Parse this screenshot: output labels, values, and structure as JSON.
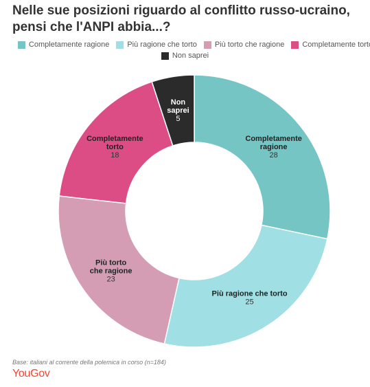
{
  "chart_data": {
    "type": "pie",
    "title": "Nelle sue posizioni riguardo al conflitto russo-ucraino, pensi che l'ANPI abbia...?",
    "categories": [
      "Completamente ragione",
      "Più ragione che torto",
      "Più torto che ragione",
      "Completamente torto",
      "Non saprei"
    ],
    "slice_labels": [
      [
        "Completamente",
        "ragione"
      ],
      [
        "Più ragione che torto"
      ],
      [
        "Più torto",
        "che ragione"
      ],
      [
        "Completamente",
        "torto"
      ],
      [
        "Non",
        "saprei"
      ]
    ],
    "values": [
      28,
      25,
      23,
      18,
      5
    ],
    "colors": [
      "#76c5c5",
      "#a0dfe3",
      "#d59db4",
      "#dc4d85",
      "#2b2b2b"
    ],
    "donut": true,
    "legend_position": "top"
  },
  "footnote": "Base: italiani al corrente della polemica in corso (n=184)",
  "brand": "YouGov"
}
